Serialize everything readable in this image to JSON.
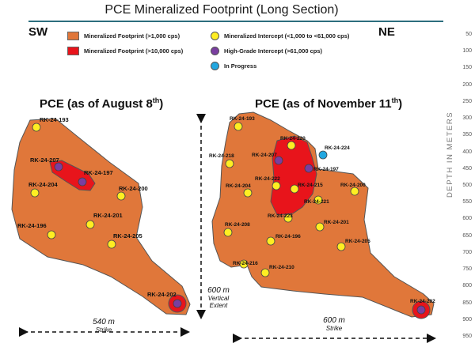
{
  "title": "PCE Mineralized Footprint (Long Section)",
  "directions": {
    "left": "SW",
    "right": "NE"
  },
  "legend": {
    "footprint_1000": "Mineralized Footprint (>1,000 cps)",
    "footprint_10000": "Mineralized Footprint (>10,000 cps)",
    "intercept": "Mineralized Intercept (<1,000 to <61,000 cps)",
    "high_grade": "High-Grade Intercept (>61,000 cps)",
    "in_progress": "In Progress"
  },
  "colors": {
    "footprint": "#e0773a",
    "high_grade_zone": "#e8141b",
    "intercept": "#ffee22",
    "high_grade_dot": "#7a3ea0",
    "in_progress": "#22a7e0",
    "title_rule": "#2c6e7e"
  },
  "panel_left": {
    "title": "PCE (as of August 8",
    "title_sup": "th",
    "title_end": ")",
    "holes": [
      "RK-24-193",
      "RK-24-207",
      "RK-24-197",
      "RK-24-204",
      "RK-24-200",
      "RK-24-201",
      "RK-24-196",
      "RK-24-205",
      "RK-24-202"
    ],
    "strike_value": "540 m",
    "strike_label": "Strike"
  },
  "panel_right": {
    "title": "PCE (as of November 11",
    "title_sup": "th",
    "title_end": ")",
    "holes": [
      "RK-24-193",
      "RK-24-220",
      "RK-24-224",
      "RK-24-218",
      "RK-24-207",
      "RK-24-197",
      "RK-24-204",
      "RK-24-222",
      "RK-24-215",
      "RK-24-200",
      "RK-24-221",
      "RK-24-223",
      "RK-24-208",
      "RK-24-201",
      "RK-24-196",
      "RK-24-205",
      "RK-24-216",
      "RK-24-210",
      "RK-24-202"
    ],
    "strike_value": "600 m",
    "strike_label": "Strike"
  },
  "vertical_extent": {
    "value": "600 m",
    "line1": "Vertical",
    "line2": "Extent"
  },
  "depth_axis": {
    "label": "DEPTH IN METERS",
    "ticks": [
      "50",
      "100",
      "150",
      "200",
      "250",
      "300",
      "350",
      "400",
      "450",
      "500",
      "550",
      "600",
      "650",
      "700",
      "750",
      "800",
      "850",
      "900",
      "950"
    ]
  }
}
